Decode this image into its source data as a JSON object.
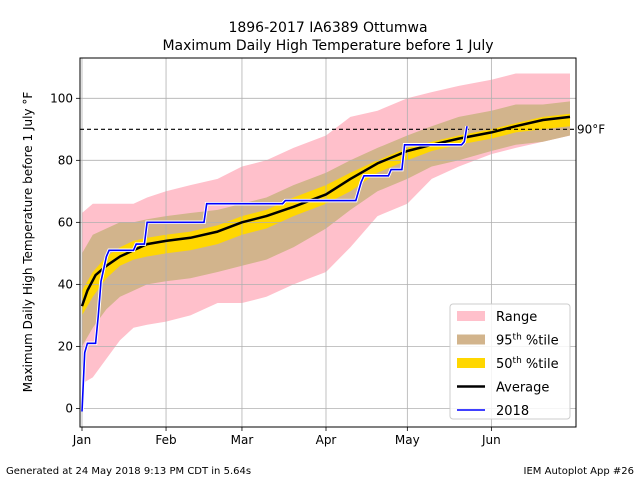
{
  "chart_data": {
    "type": "area",
    "title_line1": "1896-2017 IA6389 Ottumwa",
    "title_line2": "Maximum Daily High Temperature before 1 July",
    "ylabel": "Maximum Daily High Temperature before 1 July",
    "ylabel_unit": "°F",
    "xlim": [
      "2018-01-01",
      "2018-06-30"
    ],
    "ylim": [
      -6,
      113
    ],
    "grid": true,
    "legend_placement": "lower-right",
    "x_ticks": [
      {
        "label": "Jan",
        "date": "2018-01-01"
      },
      {
        "label": "Feb",
        "date": "2018-02-01"
      },
      {
        "label": "Mar",
        "date": "2018-03-01"
      },
      {
        "label": "Apr",
        "date": "2018-04-01"
      },
      {
        "label": "May",
        "date": "2018-05-01"
      },
      {
        "label": "Jun",
        "date": "2018-06-01"
      }
    ],
    "y_ticks": [
      0,
      20,
      40,
      60,
      80,
      100
    ],
    "reference_line": {
      "value": 90,
      "label": "90°F"
    },
    "legend": [
      {
        "label": "Range",
        "sup": "",
        "suffix": "",
        "color": "#ffc0cb",
        "kind": "patch"
      },
      {
        "label": "95",
        "sup": "th",
        "suffix": " %tile",
        "color": "#d2b48c",
        "kind": "patch"
      },
      {
        "label": "50",
        "sup": "th",
        "suffix": " %tile",
        "color": "#ffd700",
        "kind": "patch"
      },
      {
        "label": "Average",
        "sup": "",
        "suffix": "",
        "color": "#000000",
        "kind": "line"
      },
      {
        "label": "2018",
        "sup": "",
        "suffix": "",
        "color": "#0000ff",
        "kind": "line"
      }
    ],
    "colors": {
      "range": "#ffc0cb",
      "p95": "#d2b48c",
      "p50": "#ffd700",
      "average": "#000000",
      "year2018": "#0000ff",
      "grid": "#b0b0b0"
    },
    "series": [
      {
        "name": "Range",
        "x": [
          "2018-01-01",
          "2018-01-05",
          "2018-01-10",
          "2018-01-15",
          "2018-01-20",
          "2018-01-25",
          "2018-02-01",
          "2018-02-10",
          "2018-02-20",
          "2018-03-01",
          "2018-03-10",
          "2018-03-20",
          "2018-04-01",
          "2018-04-10",
          "2018-04-20",
          "2018-05-01",
          "2018-05-10",
          "2018-05-20",
          "2018-06-01",
          "2018-06-10",
          "2018-06-20",
          "2018-06-30"
        ],
        "low": [
          8,
          10,
          16,
          22,
          26,
          27,
          28,
          30,
          34,
          34,
          36,
          40,
          44,
          52,
          62,
          66,
          74,
          78,
          82,
          84,
          86,
          88
        ],
        "high": [
          63,
          66,
          66,
          66,
          66,
          68,
          70,
          72,
          74,
          78,
          80,
          84,
          88,
          94,
          96,
          100,
          102,
          104,
          106,
          108,
          108,
          108
        ]
      },
      {
        "name": "95th %tile",
        "x": [
          "2018-01-01",
          "2018-01-05",
          "2018-01-10",
          "2018-01-15",
          "2018-01-20",
          "2018-01-25",
          "2018-02-01",
          "2018-02-10",
          "2018-02-20",
          "2018-03-01",
          "2018-03-10",
          "2018-03-20",
          "2018-04-01",
          "2018-04-10",
          "2018-04-20",
          "2018-05-01",
          "2018-05-10",
          "2018-05-20",
          "2018-06-01",
          "2018-06-10",
          "2018-06-20",
          "2018-06-30"
        ],
        "low": [
          20,
          26,
          32,
          36,
          38,
          40,
          41,
          42,
          44,
          46,
          48,
          52,
          58,
          64,
          70,
          74,
          78,
          80,
          83,
          85,
          86,
          88
        ],
        "high": [
          50,
          56,
          58,
          60,
          60,
          61,
          62,
          63,
          64,
          66,
          68,
          72,
          76,
          80,
          84,
          88,
          91,
          94,
          96,
          98,
          98,
          99
        ]
      },
      {
        "name": "50th %tile",
        "x": [
          "2018-01-01",
          "2018-01-05",
          "2018-01-10",
          "2018-01-15",
          "2018-01-20",
          "2018-01-25",
          "2018-02-01",
          "2018-02-10",
          "2018-02-20",
          "2018-03-01",
          "2018-03-10",
          "2018-03-20",
          "2018-04-01",
          "2018-04-10",
          "2018-04-20",
          "2018-05-01",
          "2018-05-10",
          "2018-05-20",
          "2018-06-01",
          "2018-06-10",
          "2018-06-20",
          "2018-06-30"
        ],
        "low": [
          30,
          36,
          42,
          46,
          48,
          49,
          50,
          51,
          53,
          56,
          58,
          62,
          66,
          70,
          76,
          80,
          83,
          85,
          87,
          89,
          90,
          91
        ],
        "high": [
          38,
          44,
          49,
          52,
          54,
          55,
          56,
          57,
          59,
          62,
          64,
          68,
          72,
          76,
          80,
          84,
          86,
          88,
          90,
          92,
          94,
          95
        ]
      },
      {
        "name": "Average",
        "x": [
          "2018-01-01",
          "2018-01-03",
          "2018-01-06",
          "2018-01-10",
          "2018-01-15",
          "2018-01-20",
          "2018-01-25",
          "2018-02-01",
          "2018-02-10",
          "2018-02-20",
          "2018-03-01",
          "2018-03-10",
          "2018-03-20",
          "2018-04-01",
          "2018-04-10",
          "2018-04-20",
          "2018-05-01",
          "2018-05-10",
          "2018-05-20",
          "2018-06-01",
          "2018-06-10",
          "2018-06-20",
          "2018-06-30"
        ],
        "y": [
          33,
          38,
          43,
          46,
          49,
          51,
          53,
          54,
          55,
          57,
          60,
          62,
          65,
          69,
          74,
          79,
          83,
          85,
          87,
          89,
          91,
          93,
          94
        ]
      },
      {
        "name": "2018",
        "x": [
          "2018-01-01",
          "2018-01-02",
          "2018-01-03",
          "2018-01-06",
          "2018-01-07",
          "2018-01-08",
          "2018-01-09",
          "2018-01-10",
          "2018-01-11",
          "2018-01-20",
          "2018-01-21",
          "2018-01-24",
          "2018-01-25",
          "2018-02-15",
          "2018-02-16",
          "2018-03-16",
          "2018-03-17",
          "2018-04-12",
          "2018-04-13",
          "2018-04-14",
          "2018-04-15",
          "2018-04-24",
          "2018-04-25",
          "2018-04-29",
          "2018-04-30",
          "2018-05-21",
          "2018-05-22",
          "2018-05-23"
        ],
        "y": [
          -1,
          18,
          21,
          21,
          30,
          41,
          45,
          49,
          51,
          51,
          53,
          53,
          60,
          60,
          66,
          66,
          67,
          67,
          70,
          73,
          75,
          75,
          77,
          77,
          85,
          85,
          86,
          91
        ]
      }
    ]
  },
  "footer": {
    "left": "Generated at 24 May 2018 9:13 PM CDT in 5.64s",
    "right": "IEM Autoplot App #26"
  }
}
